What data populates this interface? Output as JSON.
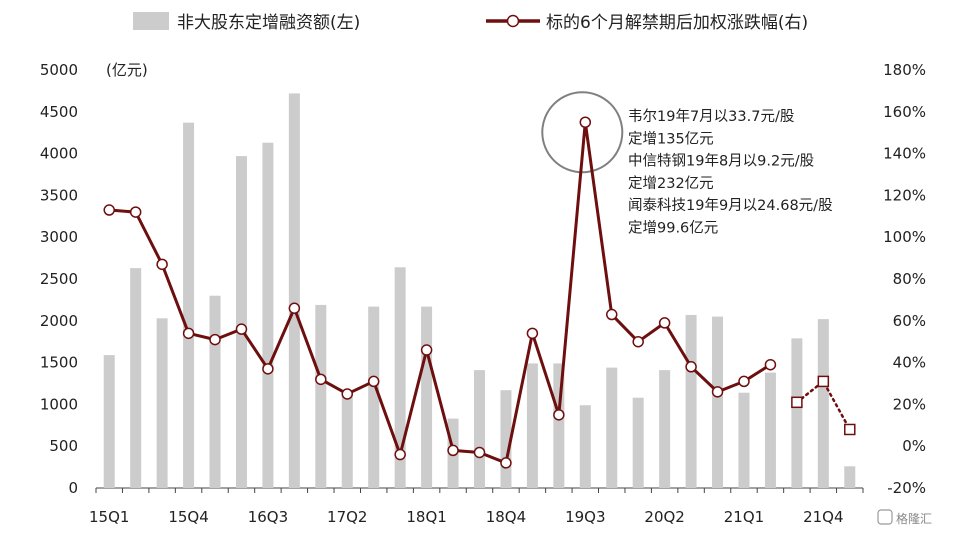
{
  "chart_data": {
    "type": "bar+line",
    "categories": [
      "15Q1",
      "15Q2",
      "15Q3",
      "15Q4",
      "16Q1",
      "16Q2",
      "16Q3",
      "16Q4",
      "17Q1",
      "17Q2",
      "17Q3",
      "17Q4",
      "18Q1",
      "18Q2",
      "18Q3",
      "18Q4",
      "19Q1",
      "19Q2",
      "19Q3",
      "19Q4",
      "20Q1",
      "20Q2",
      "20Q3",
      "20Q4",
      "21Q1",
      "21Q2",
      "21Q3",
      "21Q4",
      "22Q1"
    ],
    "x_tick_labels": [
      "15Q1",
      "15Q4",
      "16Q3",
      "17Q2",
      "18Q1",
      "18Q4",
      "19Q3",
      "20Q2",
      "21Q1",
      "21Q4"
    ],
    "series": [
      {
        "name": "非大股东定增融资额(左)",
        "type": "bar",
        "axis": "left",
        "color": "#cccccc",
        "values": [
          1590,
          2630,
          2030,
          4370,
          2300,
          3970,
          4130,
          4720,
          2190,
          1170,
          2170,
          2640,
          2170,
          830,
          1410,
          1170,
          1490,
          1490,
          990,
          1440,
          1080,
          1410,
          2070,
          2050,
          1140,
          1380,
          1790,
          2020,
          260
        ]
      },
      {
        "name": "标的6个月解禁期后加权涨跌幅(右)",
        "type": "line",
        "axis": "right",
        "color": "#6e0f0f",
        "values": [
          113,
          112,
          87,
          54,
          51,
          56,
          37,
          66,
          32,
          25,
          31,
          -4,
          46,
          -2,
          -3,
          -8,
          54,
          15,
          155,
          63,
          50,
          59,
          38,
          26,
          31,
          39,
          null,
          null,
          null
        ],
        "projected": [
          null,
          null,
          null,
          null,
          null,
          null,
          null,
          null,
          null,
          null,
          null,
          null,
          null,
          null,
          null,
          null,
          null,
          null,
          null,
          null,
          null,
          null,
          null,
          null,
          null,
          null,
          21,
          31,
          8
        ]
      }
    ],
    "left_axis": {
      "label": "(亿元)",
      "min": 0,
      "max": 5000,
      "ticks": [
        0,
        500,
        1000,
        1500,
        2000,
        2500,
        3000,
        3500,
        4000,
        4500,
        5000
      ]
    },
    "right_axis": {
      "min": -20,
      "max": 180,
      "ticks": [
        "-20%",
        "0%",
        "20%",
        "40%",
        "60%",
        "80%",
        "100%",
        "120%",
        "140%",
        "160%",
        "180%"
      ]
    },
    "legend": {
      "position": "top"
    },
    "annotation": {
      "lines": [
        "韦尔19年7月以33.7元/股",
        "定增135亿元",
        "中信特钢19年8月以9.2元/股",
        "定增232亿元",
        "闻泰科技19年9月以24.68元/股",
        "定增99.6亿元"
      ],
      "circle_color": "#808080"
    },
    "watermark": "格隆汇"
  }
}
